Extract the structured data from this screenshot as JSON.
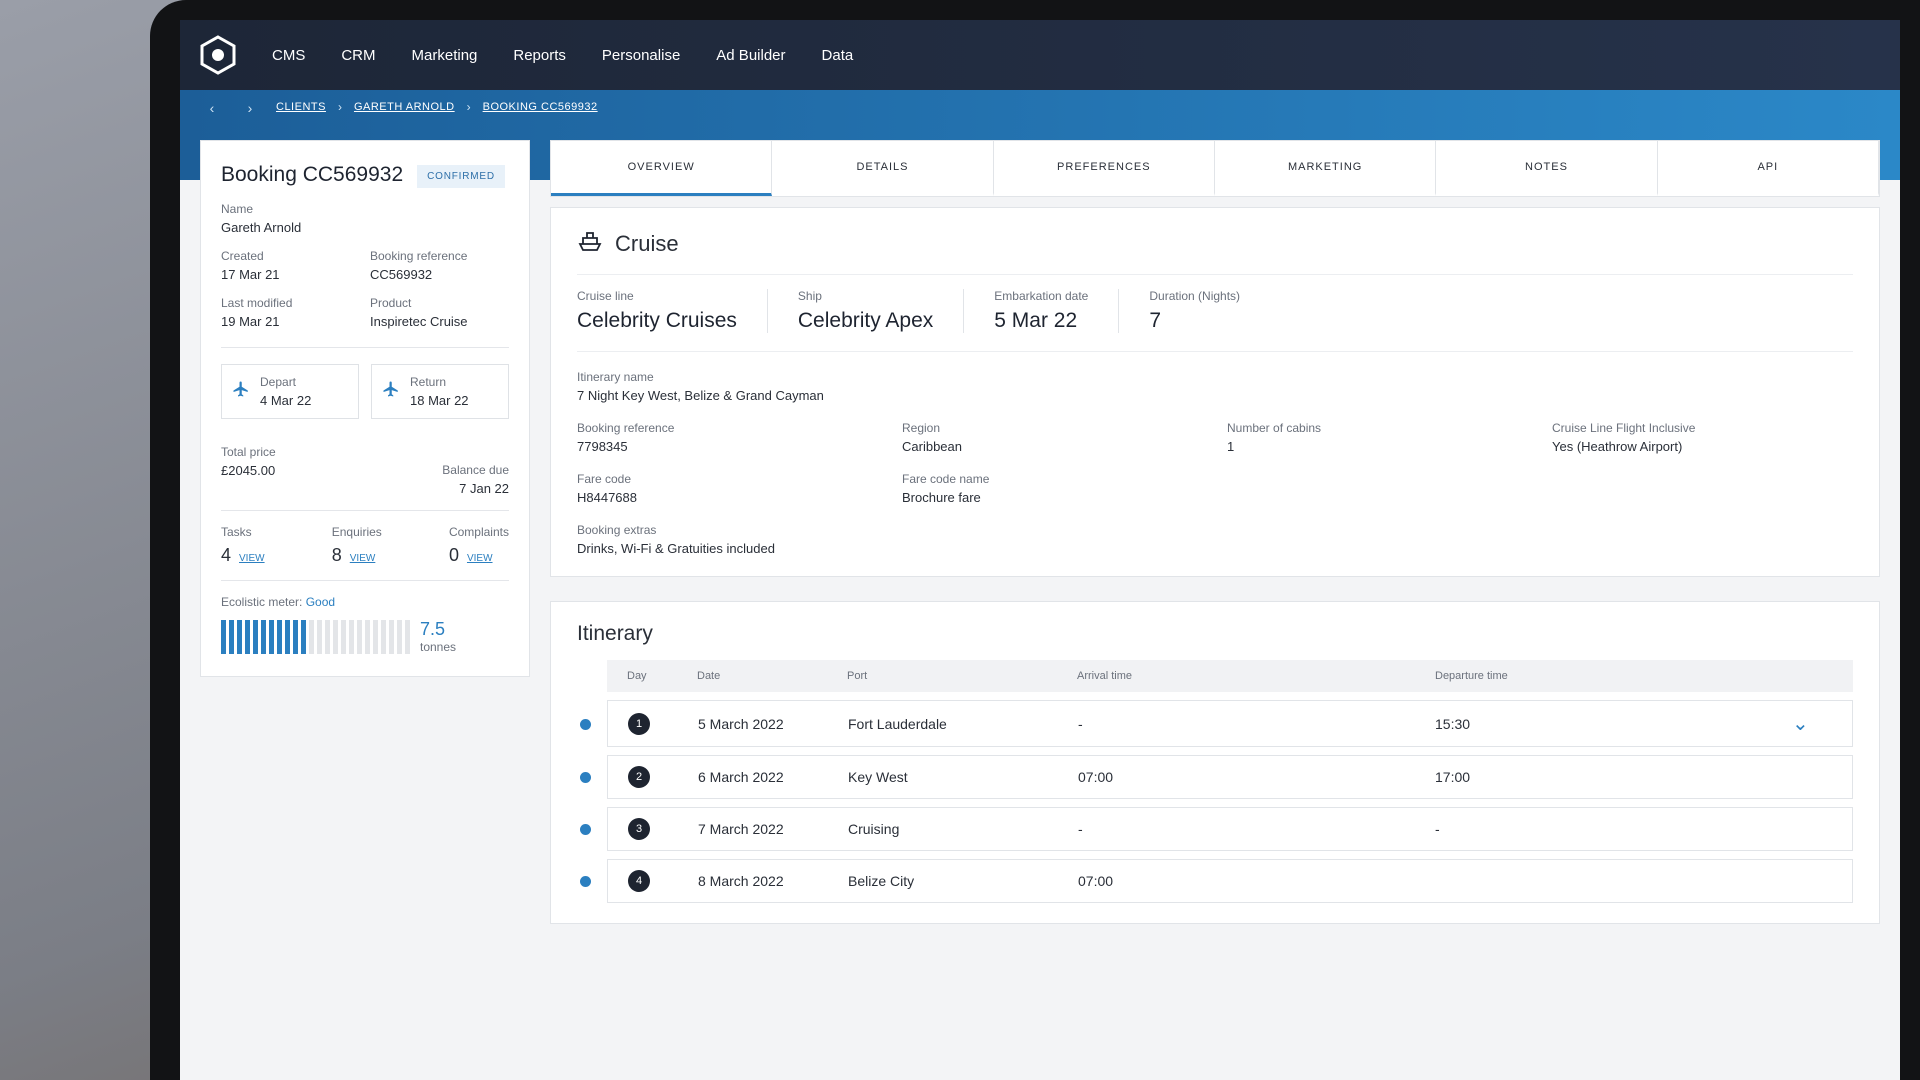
{
  "nav": {
    "items": [
      "CMS",
      "CRM",
      "Marketing",
      "Reports",
      "Personalise",
      "Ad Builder",
      "Data"
    ]
  },
  "breadcrumbs": [
    "CLIENTS",
    "GARETH ARNOLD",
    "BOOKING CC569932"
  ],
  "summary": {
    "title": "Booking CC569932",
    "status": "CONFIRMED",
    "fields": [
      {
        "label": "Name",
        "value": "Gareth Arnold"
      },
      {
        "label": "Created",
        "value": "17 Mar 21"
      },
      {
        "label": "Booking reference",
        "value": "CC569932"
      },
      {
        "label": "Last modified",
        "value": "19 Mar 21"
      },
      {
        "label": "Product",
        "value": "Inspiretec Cruise"
      }
    ],
    "flights": [
      {
        "label": "Depart",
        "value": "4 Mar 22"
      },
      {
        "label": "Return",
        "value": "18 Mar 22"
      }
    ],
    "total_price": {
      "label": "Total price",
      "value": "£2045.00"
    },
    "balance_due": {
      "label": "Balance due",
      "value": "7 Jan 22"
    },
    "counters": [
      {
        "label": "Tasks",
        "value": 4,
        "link": "VIEW"
      },
      {
        "label": "Enquiries",
        "value": 8,
        "link": "VIEW"
      },
      {
        "label": "Complaints",
        "value": 0,
        "link": "VIEW"
      }
    ],
    "eco": {
      "label": "Ecolistic meter:",
      "rating": "Good",
      "value": 7.5,
      "unit": "tonnes"
    }
  },
  "tabs": [
    "OVERVIEW",
    "DETAILS",
    "PREFERENCES",
    "MARKETING",
    "NOTES",
    "API"
  ],
  "cruise": {
    "title": "Cruise",
    "highlights": [
      {
        "label": "Cruise line",
        "value": "Celebrity Cruises"
      },
      {
        "label": "Ship",
        "value": "Celebrity Apex"
      },
      {
        "label": "Embarkation date",
        "value": "5 Mar 22"
      },
      {
        "label": "Duration (Nights)",
        "value": 7
      }
    ],
    "fields": [
      {
        "label": "Itinerary name",
        "value": "7 Night Key West, Belize & Grand Cayman"
      },
      {
        "label": "Booking reference",
        "value": "7798345"
      },
      {
        "label": "Region",
        "value": "Caribbean"
      },
      {
        "label": "Number of cabins",
        "value": 1
      },
      {
        "label": "Cruise Line Flight Inclusive",
        "value": "Yes (Heathrow Airport)"
      },
      {
        "label": "Fare code",
        "value": "H8447688"
      },
      {
        "label": "Fare code name",
        "value": "Brochure fare"
      },
      {
        "label": "Booking extras",
        "value": "Drinks, Wi-Fi & Gratuities included"
      }
    ]
  },
  "itinerary": {
    "title": "Itinerary",
    "columns": [
      "Day",
      "Date",
      "Port",
      "Arrival time",
      "Departure time"
    ],
    "rows": [
      {
        "day": 1,
        "date": "5 March 2022",
        "port": "Fort Lauderdale",
        "arrival": "-",
        "departure": "15:30"
      },
      {
        "day": 2,
        "date": "6 March 2022",
        "port": "Key West",
        "arrival": "07:00",
        "departure": "17:00"
      },
      {
        "day": 3,
        "date": "7 March 2022",
        "port": "Cruising",
        "arrival": "-",
        "departure": "-"
      },
      {
        "day": 4,
        "date": "8 March 2022",
        "port": "Belize City",
        "arrival": "07:00"
      }
    ]
  }
}
